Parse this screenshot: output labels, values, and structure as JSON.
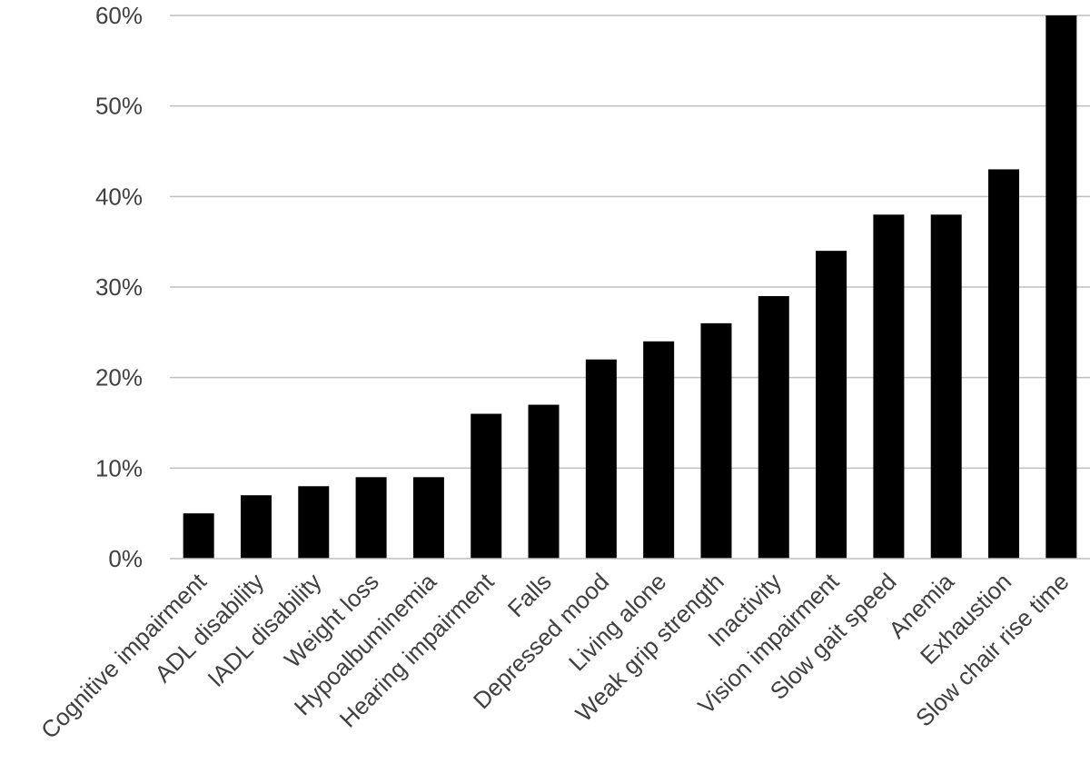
{
  "chart_data": {
    "type": "bar",
    "title": "",
    "xlabel": "",
    "ylabel": "",
    "ylim": [
      0,
      60
    ],
    "ytick_values": [
      0,
      10,
      20,
      30,
      40,
      50,
      60
    ],
    "ytick_labels": [
      "0%",
      "10%",
      "20%",
      "30%",
      "40%",
      "50%",
      "60%"
    ],
    "grid": true,
    "legend": "none",
    "bar_color": "#000000",
    "categories": [
      "Cognitive impairment",
      "ADL disability",
      "IADL disability",
      "Weight loss",
      "Hypoalbuminemia",
      "Hearing impairment",
      "Falls",
      "Depressed mood",
      "Living alone",
      "Weak grip strength",
      "Inactivity",
      "Vision impairment",
      "Slow gait speed",
      "Anemia",
      "Exhaustion",
      "Slow chair rise time"
    ],
    "values": [
      5,
      7,
      8,
      9,
      9,
      16,
      17,
      22,
      24,
      26,
      29,
      34,
      38,
      38,
      43,
      60
    ]
  }
}
